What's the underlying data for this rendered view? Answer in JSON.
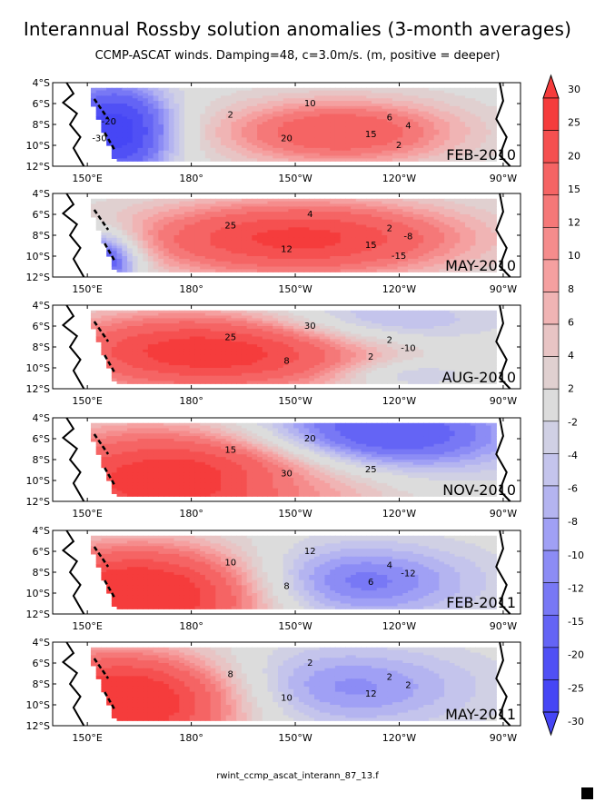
{
  "title": "Interannual Rossby solution anomalies (3-month averages)",
  "subtitle": "CCMP-ASCAT winds. Damping=48, c=3.0m/s. (m, positive = deeper)",
  "footer": "rwint_ccmp_ascat_interann_87_13.f",
  "colors": {
    "positive_max": "#f53c3c",
    "neutral": "#dcdcdc",
    "negative_max": "#4646f5"
  },
  "chart_data": [
    {
      "type": "heatmap",
      "label": "FEB-2010",
      "xlim": [
        140,
        275
      ],
      "ylim": [
        -12,
        -4
      ],
      "x_ticks": [
        "150°E",
        "180°",
        "150°W",
        "120°W",
        "90°W"
      ],
      "y_ticks": [
        "4°S",
        "6°S",
        "8°S",
        "10°S",
        "12°S"
      ],
      "contour_labels": [
        "10",
        "2",
        "20",
        "15",
        "6",
        "4",
        "2",
        "-20",
        "-30"
      ],
      "blobs": [
        {
          "lon": 222,
          "lat": -8.6,
          "value": 20,
          "sx": 24,
          "sy": 2.2
        },
        {
          "lon": 157,
          "lat": -8.5,
          "value": -30,
          "sx": 11,
          "sy": 3.0
        }
      ]
    },
    {
      "type": "heatmap",
      "label": "MAY-2010",
      "xlim": [
        140,
        275
      ],
      "ylim": [
        -12,
        -4
      ],
      "x_ticks": [
        "150°E",
        "180°",
        "150°W",
        "120°W",
        "90°W"
      ],
      "y_ticks": [
        "4°S",
        "6°S",
        "8°S",
        "10°S",
        "12°S"
      ],
      "contour_labels": [
        "4",
        "25",
        "12",
        "15",
        "2",
        "-8",
        "-15"
      ],
      "blobs": [
        {
          "lon": 210,
          "lat": -8.2,
          "value": 27,
          "sx": 33,
          "sy": 2.5
        },
        {
          "lon": 152,
          "lat": -10.2,
          "value": -25,
          "sx": 8,
          "sy": 1.8
        }
      ]
    },
    {
      "type": "heatmap",
      "label": "AUG-2010",
      "xlim": [
        140,
        275
      ],
      "ylim": [
        -12,
        -4
      ],
      "x_ticks": [
        "150°E",
        "180°",
        "150°W",
        "120°W",
        "90°W"
      ],
      "y_ticks": [
        "4°S",
        "6°S",
        "8°S",
        "10°S",
        "12°S"
      ],
      "contour_labels": [
        "30",
        "25",
        "8",
        "2",
        "2",
        "-10"
      ],
      "blobs": [
        {
          "lon": 185,
          "lat": -8.3,
          "value": 30,
          "sx": 32,
          "sy": 2.6
        },
        {
          "lon": 228,
          "lat": -5.5,
          "value": -10,
          "sx": 25,
          "sy": 1.8
        },
        {
          "lon": 240,
          "lat": -10.5,
          "value": -7,
          "sx": 14,
          "sy": 1.0
        }
      ]
    },
    {
      "type": "heatmap",
      "label": "NOV-2010",
      "xlim": [
        140,
        275
      ],
      "ylim": [
        -12,
        -4
      ],
      "x_ticks": [
        "150°E",
        "180°",
        "150°W",
        "120°W",
        "90°W"
      ],
      "y_ticks": [
        "4°S",
        "6°S",
        "8°S",
        "10°S",
        "12°S"
      ],
      "contour_labels": [
        "20",
        "15",
        "30",
        "25"
      ],
      "blobs": [
        {
          "lon": 178,
          "lat": -9.8,
          "value": 32,
          "sx": 32,
          "sy": 3.5
        },
        {
          "lon": 232,
          "lat": -5.5,
          "value": -22,
          "sx": 28,
          "sy": 2.6
        },
        {
          "lon": 200,
          "lat": -10.5,
          "value": -6,
          "sx": 14,
          "sy": 1.5
        }
      ]
    },
    {
      "type": "heatmap",
      "label": "FEB-2011",
      "xlim": [
        140,
        275
      ],
      "ylim": [
        -12,
        -4
      ],
      "x_ticks": [
        "150°E",
        "180°",
        "150°W",
        "120°W",
        "90°W"
      ],
      "y_ticks": [
        "4°S",
        "6°S",
        "8°S",
        "10°S",
        "12°S"
      ],
      "contour_labels": [
        "12",
        "10",
        "8",
        "6",
        "4",
        "-12"
      ],
      "blobs": [
        {
          "lon": 165,
          "lat": -10.0,
          "value": 35,
          "sx": 25,
          "sy": 3.2
        },
        {
          "lon": 225,
          "lat": -8.8,
          "value": -14,
          "sx": 25,
          "sy": 2.6
        }
      ]
    },
    {
      "type": "heatmap",
      "label": "MAY-2011",
      "xlim": [
        140,
        275
      ],
      "ylim": [
        -12,
        -4
      ],
      "x_ticks": [
        "150°E",
        "180°",
        "150°W",
        "120°W",
        "90°W"
      ],
      "y_ticks": [
        "4°S",
        "6°S",
        "8°S",
        "10°S",
        "12°S"
      ],
      "contour_labels": [
        "2",
        "8",
        "10",
        "12",
        "2",
        "2"
      ],
      "blobs": [
        {
          "lon": 160,
          "lat": -9.5,
          "value": 35,
          "sx": 23,
          "sy": 3.2
        },
        {
          "lon": 222,
          "lat": -8.2,
          "value": -11,
          "sx": 28,
          "sy": 2.8
        }
      ]
    }
  ],
  "colorbar": {
    "levels": [
      "30",
      "25",
      "20",
      "15",
      "12",
      "10",
      "8",
      "6",
      "4",
      "2",
      "-2",
      "-4",
      "-6",
      "-8",
      "-10",
      "-12",
      "-15",
      "-20",
      "-25",
      "-30"
    ],
    "colors": [
      "#f53c3c",
      "#f55050",
      "#f56464",
      "#f57878",
      "#f58c8c",
      "#f5a0a0",
      "#f0b4b4",
      "#e8c4c4",
      "#e0d0d0",
      "#dcdcdc",
      "#d0d0e4",
      "#c4c4ec",
      "#b4b4f0",
      "#a0a0f5",
      "#8c8cf5",
      "#7878f5",
      "#6464f5",
      "#5050f5",
      "#4646f5"
    ]
  }
}
